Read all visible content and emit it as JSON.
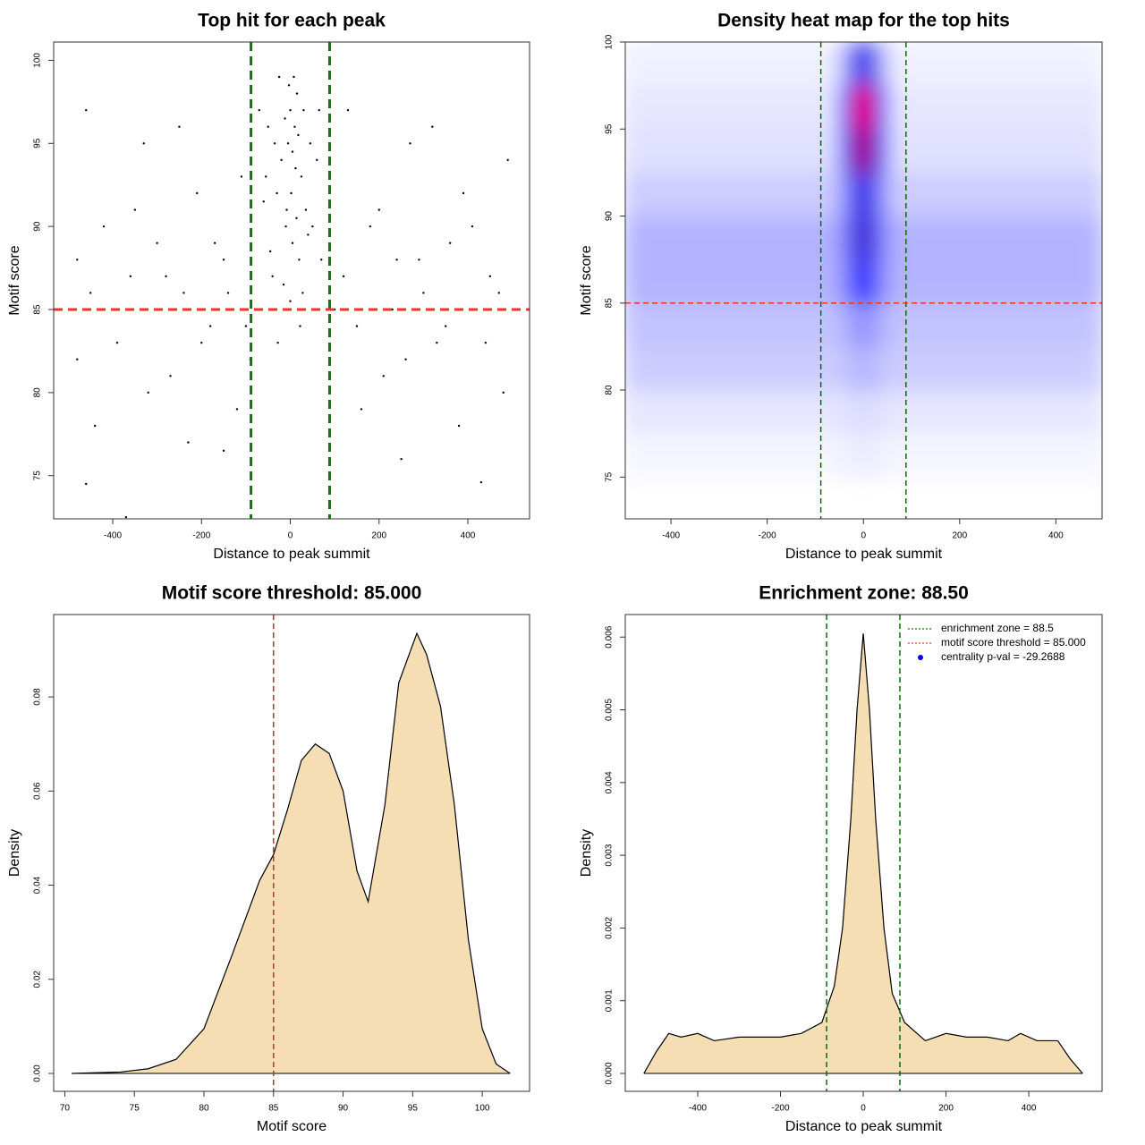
{
  "chart_data": [
    {
      "type": "scatter",
      "title": "Top hit for each peak",
      "xlabel": "Distance to peak summit",
      "ylabel": "Motif score",
      "xlim": [
        -533,
        539
      ],
      "ylim": [
        72.4,
        101.1
      ],
      "xticks": [
        -400,
        -200,
        0,
        200,
        400
      ],
      "yticks": [
        75,
        80,
        85,
        90,
        95,
        100
      ],
      "color": "#000000",
      "x": [
        -5,
        10,
        -20,
        25,
        0,
        15,
        -30,
        35,
        5,
        -10,
        20,
        -40,
        45,
        -50,
        60,
        -55,
        30,
        -25,
        8,
        -12,
        18,
        -35,
        40,
        -45,
        2,
        12,
        -8,
        28,
        -15,
        50,
        -60,
        65,
        -70,
        70,
        0,
        22,
        -28,
        5,
        -3,
        14,
        -480,
        -450,
        -420,
        -390,
        -360,
        -330,
        -300,
        -270,
        -240,
        -210,
        -180,
        -150,
        -120,
        -480,
        -460,
        -440,
        -400,
        -350,
        -320,
        -280,
        -250,
        -200,
        -170,
        -140,
        -110,
        -90,
        120,
        150,
        180,
        210,
        240,
        270,
        300,
        330,
        360,
        390,
        420,
        450,
        480,
        130,
        160,
        200,
        230,
        260,
        290,
        320,
        350,
        380,
        410,
        440,
        470,
        490,
        -370,
        -460,
        430,
        -230,
        250,
        -150,
        100,
        -100
      ],
      "values": [
        95,
        96,
        94,
        93,
        97,
        98,
        92,
        91,
        89,
        90,
        88,
        87,
        95,
        96,
        94,
        93,
        97,
        99,
        99,
        96.5,
        95.5,
        95,
        89.5,
        88.5,
        92,
        93.5,
        91,
        86,
        86.5,
        90,
        91.5,
        97,
        97,
        88,
        85.5,
        84,
        83,
        94.5,
        98.5,
        90.5,
        88,
        86,
        90,
        83,
        87,
        95,
        89,
        81,
        86,
        92,
        84,
        88,
        79,
        82,
        97,
        78,
        85,
        91,
        80,
        87,
        96,
        83,
        89,
        86,
        93,
        82,
        87,
        84,
        90,
        81,
        88,
        95,
        86,
        83,
        89,
        92,
        85,
        87,
        80,
        97,
        79,
        91,
        85,
        82,
        88,
        96,
        84,
        78,
        90,
        83,
        86,
        94,
        72.5,
        74.5,
        74.6,
        77,
        76,
        76.5,
        85,
        84
      ],
      "vlines": [
        -88.5,
        88.5
      ],
      "vline_color": "#0a7a0a",
      "hlines": [
        85
      ],
      "hline_color": "#e03a2a"
    },
    {
      "type": "heatmap",
      "title": "Density heat map for the top hits",
      "xlabel": "Distance to peak summit",
      "ylabel": "Motif score",
      "xlim": [
        -495,
        496
      ],
      "ylim": [
        72.6,
        100
      ],
      "xticks": [
        -400,
        -200,
        0,
        200,
        400
      ],
      "yticks": [
        75,
        80,
        85,
        90,
        95,
        100
      ],
      "xedges": [
        -500,
        -300,
        -100,
        -50,
        -20,
        20,
        50,
        100,
        300,
        500
      ],
      "yedges": [
        75,
        77.5,
        80,
        82.5,
        85,
        87.5,
        90,
        92.5,
        95,
        97.5,
        100
      ],
      "z": [
        [
          0.02,
          0.02,
          0.02,
          0.03,
          0.04,
          0.03,
          0.02,
          0.02,
          0.02
        ],
        [
          0.05,
          0.05,
          0.05,
          0.06,
          0.07,
          0.06,
          0.05,
          0.05,
          0.05
        ],
        [
          0.1,
          0.1,
          0.1,
          0.12,
          0.15,
          0.12,
          0.1,
          0.1,
          0.1
        ],
        [
          0.12,
          0.12,
          0.12,
          0.16,
          0.22,
          0.16,
          0.12,
          0.12,
          0.12
        ],
        [
          0.15,
          0.15,
          0.15,
          0.25,
          0.5,
          0.25,
          0.15,
          0.15,
          0.15
        ],
        [
          0.15,
          0.15,
          0.15,
          0.28,
          0.6,
          0.28,
          0.15,
          0.15,
          0.15
        ],
        [
          0.1,
          0.1,
          0.1,
          0.25,
          0.55,
          0.25,
          0.1,
          0.1,
          0.1
        ],
        [
          0.06,
          0.06,
          0.06,
          0.4,
          0.85,
          0.4,
          0.06,
          0.06,
          0.06
        ],
        [
          0.05,
          0.05,
          0.05,
          0.45,
          1.0,
          0.45,
          0.05,
          0.05,
          0.05
        ],
        [
          0.03,
          0.03,
          0.03,
          0.2,
          0.55,
          0.2,
          0.03,
          0.03,
          0.03
        ]
      ],
      "colormap": [
        "#ffffff",
        "#0000ff",
        "#ff0000"
      ],
      "vlines": [
        -88.5,
        88.5
      ],
      "vline_color": "#0a6a0a",
      "hlines": [
        85
      ],
      "hline_color": "#e03a2a"
    },
    {
      "type": "area",
      "title": "Motif score threshold: 85.000",
      "xlabel": "Motif score",
      "ylabel": "Density",
      "xlim": [
        69.2,
        103.4
      ],
      "ylim": [
        -0.0038,
        0.0975
      ],
      "xticks": [
        70,
        75,
        80,
        85,
        90,
        95,
        100
      ],
      "yticks": [
        {
          "value": 0,
          "label": "0.00"
        },
        {
          "value": 0.02,
          "label": "0.02"
        },
        {
          "value": 0.04,
          "label": "0.04"
        },
        {
          "value": 0.06,
          "label": "0.06"
        },
        {
          "value": 0.08,
          "label": "0.08"
        }
      ],
      "color": "#f5deb3",
      "x": [
        70.5,
        74,
        76,
        78,
        80,
        82,
        84,
        85,
        86,
        87,
        88,
        89,
        90,
        91,
        91.8,
        93,
        94,
        95.3,
        96,
        97,
        98,
        99,
        100,
        101,
        102
      ],
      "values": [
        0,
        0.0003,
        0.001,
        0.003,
        0.0095,
        0.025,
        0.041,
        0.0465,
        0.056,
        0.0665,
        0.07,
        0.068,
        0.06,
        0.043,
        0.0365,
        0.057,
        0.083,
        0.0935,
        0.089,
        0.078,
        0.057,
        0.0285,
        0.0095,
        0.002,
        0
      ],
      "vlines": [
        85
      ],
      "vline_color": "#c0302a"
    },
    {
      "type": "area",
      "title": "Enrichment zone: 88.50",
      "xlabel": "Distance to peak summit",
      "ylabel": "Density",
      "xlim": [
        -575,
        577
      ],
      "ylim": [
        -0.000246,
        0.00631
      ],
      "xticks": [
        -400,
        -200,
        0,
        200,
        400
      ],
      "yticks": [
        {
          "value": 0,
          "label": "0.000"
        },
        {
          "value": 0.001,
          "label": "0.001"
        },
        {
          "value": 0.002,
          "label": "0.002"
        },
        {
          "value": 0.003,
          "label": "0.003"
        },
        {
          "value": 0.004,
          "label": "0.004"
        },
        {
          "value": 0.005,
          "label": "0.005"
        },
        {
          "value": 0.006,
          "label": "0.006"
        }
      ],
      "color": "#f5deb3",
      "x": [
        -530,
        -500,
        -470,
        -440,
        -400,
        -360,
        -300,
        -200,
        -150,
        -100,
        -70,
        -50,
        -30,
        -15,
        0,
        15,
        30,
        50,
        70,
        100,
        150,
        200,
        250,
        300,
        350,
        380,
        420,
        470,
        500,
        530
      ],
      "values": [
        0,
        0.0003,
        0.00055,
        0.0005,
        0.00055,
        0.00045,
        0.0005,
        0.0005,
        0.00055,
        0.0007,
        0.0012,
        0.002,
        0.0035,
        0.005,
        0.00605,
        0.005,
        0.0035,
        0.002,
        0.0011,
        0.0007,
        0.00045,
        0.00055,
        0.0005,
        0.0005,
        0.00045,
        0.00055,
        0.00045,
        0.00045,
        0.0002,
        0
      ],
      "vlines": [
        -88.5,
        88.5
      ],
      "vline_color": "#0a6a0a",
      "legend_position": "topright",
      "legend": [
        {
          "label": "enrichment zone = 88.5",
          "color": "#0a7a0a",
          "style": "dotted"
        },
        {
          "label": "motif score threshold = 85.000",
          "color": "#e03a2a",
          "style": "dotted"
        },
        {
          "label": "centrality p-val = -29.2688",
          "color": "#0000ff",
          "style": "point"
        }
      ]
    }
  ]
}
